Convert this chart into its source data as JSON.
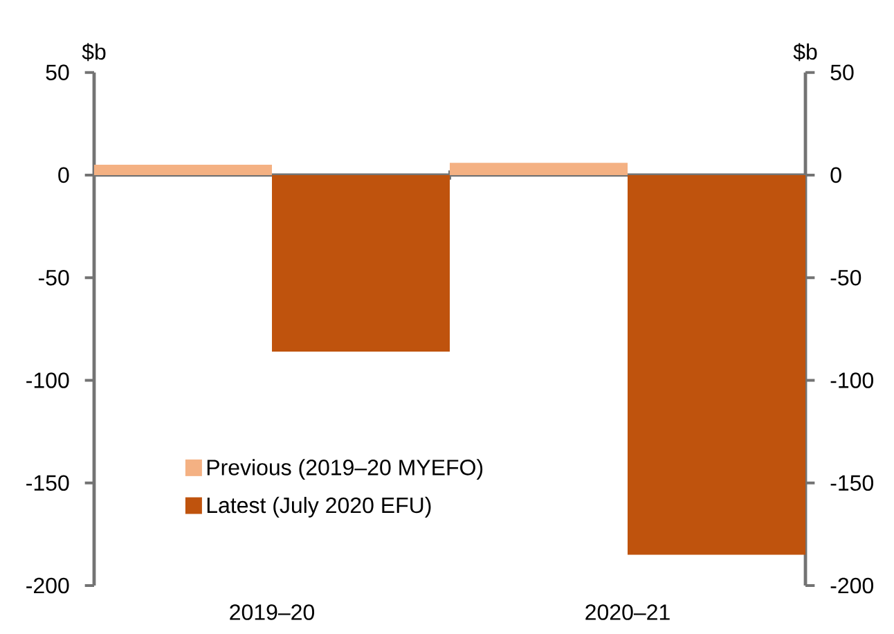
{
  "chart_data": {
    "type": "bar",
    "ylabel": "$b",
    "y2label": "$b",
    "categories": [
      "2019–20",
      "2020–21"
    ],
    "series": [
      {
        "name": "Previous (2019–20 MYEFO)",
        "color": "#f4b183",
        "values": [
          5,
          6
        ]
      },
      {
        "name": "Latest (July 2020 EFU)",
        "color": "#bf530d",
        "values": [
          -86,
          -185
        ]
      }
    ],
    "ylim": [
      -200,
      50
    ],
    "yticks": [
      -200,
      -150,
      -100,
      -50,
      0,
      50
    ],
    "y2lim": [
      -200,
      50
    ],
    "y2ticks": [
      -200,
      -150,
      -100,
      -50,
      0,
      50
    ],
    "legend": "bottom left"
  }
}
